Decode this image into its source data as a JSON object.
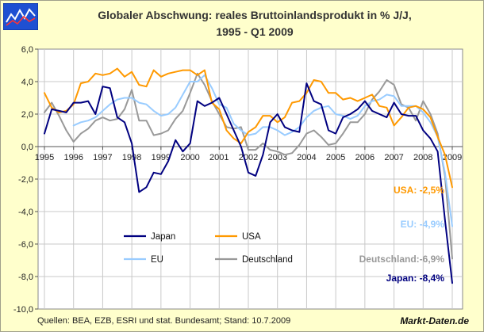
{
  "header": {
    "title_line1": "Globaler Abschwung: reales Bruttoinlandsprodukt in % J/J,",
    "title_line2": "1995 - Q1 2009"
  },
  "footer": {
    "source": "Quellen: BEA, EZB, ESRI und stat. Bundesamt; Stand: 10.7.2009",
    "brand": "Markt-Daten.de"
  },
  "logo": {
    "icon": "line-chart-logo-icon",
    "color": "#1e50d2"
  },
  "chart_data": {
    "type": "line",
    "xlim": [
      1995,
      2009.25
    ],
    "ylim": [
      -10,
      6
    ],
    "x_ticks": [
      "1995",
      "1996",
      "1997",
      "1998",
      "1999",
      "2000",
      "2001",
      "2002",
      "2003",
      "2004",
      "2005",
      "2006",
      "2007",
      "2008",
      "2009"
    ],
    "y_ticks": [
      "6,0",
      "4,0",
      "2,0",
      "0,0",
      "-2,0",
      "-4,0",
      "-6,0",
      "-8,0",
      "-10,0"
    ],
    "grid": true,
    "legend_position": "bottom-left",
    "series": [
      {
        "name": "Japan",
        "color": "#000080",
        "x": [
          1995,
          1995.25,
          1995.5,
          1995.75,
          1996,
          1996.25,
          1996.5,
          1996.75,
          1997,
          1997.25,
          1997.5,
          1997.75,
          1998,
          1998.25,
          1998.5,
          1998.75,
          1999,
          1999.25,
          1999.5,
          1999.75,
          2000,
          2000.25,
          2000.5,
          2000.75,
          2001,
          2001.25,
          2001.5,
          2001.75,
          2002,
          2002.25,
          2002.5,
          2002.75,
          2003,
          2003.25,
          2003.5,
          2003.75,
          2004,
          2004.25,
          2004.5,
          2004.75,
          2005,
          2005.25,
          2005.5,
          2005.75,
          2006,
          2006.25,
          2006.5,
          2006.75,
          2007,
          2007.25,
          2007.5,
          2007.75,
          2008,
          2008.25,
          2008.5,
          2008.75,
          2009
        ],
        "y": [
          0.8,
          2.3,
          2.2,
          2.1,
          2.7,
          2.7,
          2.8,
          2.0,
          3.7,
          3.6,
          1.8,
          1.5,
          0.2,
          -2.8,
          -2.5,
          -1.6,
          -1.7,
          -0.9,
          0.4,
          -0.3,
          0.2,
          2.8,
          2.5,
          2.7,
          3.0,
          2.0,
          1.0,
          0.0,
          -1.6,
          -1.8,
          -0.5,
          1.5,
          2.0,
          1.2,
          1.0,
          0.9,
          3.9,
          2.8,
          2.6,
          1.0,
          0.8,
          1.8,
          2.0,
          2.3,
          2.8,
          2.2,
          2.0,
          1.8,
          2.7,
          2.0,
          1.9,
          1.9,
          1.0,
          0.5,
          -0.3,
          -4.5,
          -8.4
        ]
      },
      {
        "name": "USA",
        "color": "#ff9900",
        "x": [
          1995,
          1995.25,
          1995.5,
          1995.75,
          1996,
          1996.25,
          1996.5,
          1996.75,
          1997,
          1997.25,
          1997.5,
          1997.75,
          1998,
          1998.25,
          1998.5,
          1998.75,
          1999,
          1999.25,
          1999.5,
          1999.75,
          2000,
          2000.25,
          2000.5,
          2000.75,
          2001,
          2001.25,
          2001.5,
          2001.75,
          2002,
          2002.25,
          2002.5,
          2002.75,
          2003,
          2003.25,
          2003.5,
          2003.75,
          2004,
          2004.25,
          2004.5,
          2004.75,
          2005,
          2005.25,
          2005.5,
          2005.75,
          2006,
          2006.25,
          2006.5,
          2006.75,
          2007,
          2007.25,
          2007.5,
          2007.75,
          2008,
          2008.25,
          2008.5,
          2008.75,
          2009
        ],
        "y": [
          3.3,
          2.4,
          2.1,
          2.2,
          2.6,
          3.9,
          4.0,
          4.5,
          4.4,
          4.5,
          4.8,
          4.3,
          4.6,
          3.8,
          3.7,
          4.7,
          4.3,
          4.5,
          4.6,
          4.7,
          4.7,
          4.4,
          4.7,
          2.7,
          2.3,
          1.0,
          0.5,
          0.2,
          0.9,
          1.2,
          1.9,
          1.9,
          1.5,
          1.8,
          2.7,
          2.8,
          3.3,
          4.1,
          4.0,
          3.3,
          3.3,
          2.9,
          3.0,
          2.8,
          3.0,
          3.2,
          2.5,
          2.4,
          1.3,
          1.8,
          2.4,
          2.5,
          2.3,
          1.8,
          0.6,
          -0.5,
          -2.5
        ]
      },
      {
        "name": "EU",
        "color": "#99ccff",
        "x": [
          1996,
          1996.25,
          1996.5,
          1996.75,
          1997,
          1997.25,
          1997.5,
          1997.75,
          1998,
          1998.25,
          1998.5,
          1998.75,
          1999,
          1999.25,
          1999.5,
          1999.75,
          2000,
          2000.25,
          2000.5,
          2000.75,
          2001,
          2001.25,
          2001.5,
          2001.75,
          2002,
          2002.25,
          2002.5,
          2002.75,
          2003,
          2003.25,
          2003.5,
          2003.75,
          2004,
          2004.25,
          2004.5,
          2004.75,
          2005,
          2005.25,
          2005.5,
          2005.75,
          2006,
          2006.25,
          2006.5,
          2006.75,
          2007,
          2007.25,
          2007.5,
          2007.75,
          2008,
          2008.25,
          2008.5,
          2008.75,
          2009
        ],
        "y": [
          1.3,
          1.5,
          1.6,
          1.8,
          2.2,
          2.6,
          2.9,
          3.0,
          3.0,
          2.7,
          2.6,
          2.2,
          1.9,
          2.0,
          2.4,
          3.2,
          4.0,
          4.0,
          4.4,
          3.6,
          2.6,
          2.4,
          1.4,
          1.0,
          0.7,
          0.8,
          1.2,
          1.2,
          1.0,
          0.7,
          0.9,
          1.2,
          1.8,
          2.2,
          2.4,
          2.5,
          2.0,
          1.9,
          1.7,
          1.9,
          2.5,
          2.8,
          2.9,
          3.2,
          3.1,
          2.5,
          2.5,
          2.5,
          2.1,
          1.5,
          0.6,
          -1.6,
          -4.9
        ]
      },
      {
        "name": "Deutschland",
        "color": "#999999",
        "x": [
          1995,
          1995.25,
          1995.5,
          1995.75,
          1996,
          1996.25,
          1996.5,
          1996.75,
          1997,
          1997.25,
          1997.5,
          1997.75,
          1998,
          1998.25,
          1998.5,
          1998.75,
          1999,
          1999.25,
          1999.5,
          1999.75,
          2000,
          2000.25,
          2000.5,
          2000.75,
          2001,
          2001.25,
          2001.5,
          2001.75,
          2002,
          2002.25,
          2002.5,
          2002.75,
          2003,
          2003.25,
          2003.5,
          2003.75,
          2004,
          2004.25,
          2004.5,
          2004.75,
          2005,
          2005.25,
          2005.5,
          2005.75,
          2006,
          2006.25,
          2006.5,
          2006.75,
          2007,
          2007.25,
          2007.5,
          2007.75,
          2008,
          2008.25,
          2008.5,
          2008.75,
          2009
        ],
        "y": [
          2.1,
          2.7,
          1.9,
          1.0,
          0.3,
          0.8,
          1.1,
          1.6,
          1.8,
          1.6,
          1.7,
          2.3,
          3.5,
          1.6,
          1.6,
          0.7,
          0.8,
          1.0,
          1.7,
          2.2,
          3.3,
          4.5,
          3.8,
          2.8,
          2.0,
          1.2,
          1.1,
          1.2,
          -0.2,
          -0.2,
          0.2,
          -0.2,
          -0.3,
          -0.5,
          -0.4,
          0.1,
          0.8,
          1.0,
          0.6,
          0.1,
          0.2,
          0.8,
          1.5,
          1.5,
          2.0,
          2.9,
          3.4,
          4.1,
          3.8,
          2.6,
          2.4,
          1.6,
          2.8,
          2.0,
          0.8,
          -1.8,
          -6.9
        ]
      }
    ],
    "annotations": [
      {
        "text": "USA: -2,5%",
        "color": "#ff9900"
      },
      {
        "text": "EU: -4,9%",
        "color": "#99ccff"
      },
      {
        "text": "Deutschland:-6,9%",
        "color": "#999999"
      },
      {
        "text": "Japan: -8,4%",
        "color": "#000080"
      }
    ]
  }
}
